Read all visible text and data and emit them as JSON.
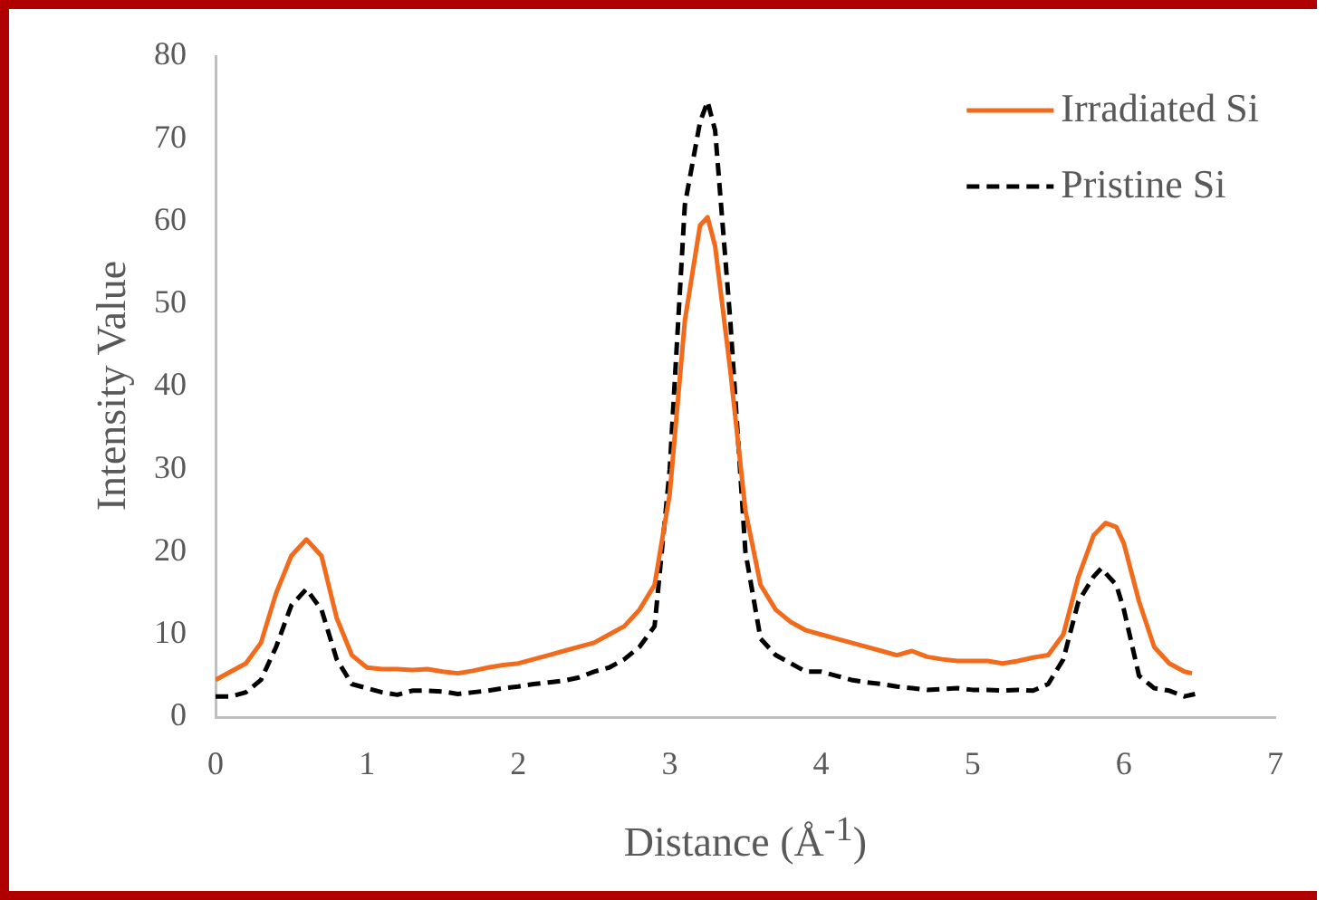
{
  "chart_data": {
    "type": "line",
    "xlabel": "Distance (Å$^{-1}$)",
    "ylabel": "Intensity Value",
    "xlim": [
      0,
      7
    ],
    "xticks": [
      0,
      1,
      2,
      3,
      4,
      5,
      6,
      7
    ],
    "ylim": [
      0,
      80
    ],
    "yticks": [
      0,
      10,
      20,
      30,
      40,
      50,
      60,
      70,
      80
    ],
    "grid": false,
    "legend": "top right",
    "marker": "none",
    "series": [
      {
        "name": "Irradiated Si",
        "color": "#f26b1d",
        "line_style": "solid",
        "x": [
          0,
          0.1,
          0.2,
          0.3,
          0.4,
          0.5,
          0.6,
          0.7,
          0.8,
          0.9,
          1.0,
          1.1,
          1.2,
          1.3,
          1.4,
          1.5,
          1.6,
          1.7,
          1.8,
          1.9,
          2.0,
          2.1,
          2.2,
          2.3,
          2.4,
          2.5,
          2.6,
          2.7,
          2.8,
          2.9,
          3.0,
          3.1,
          3.2,
          3.25,
          3.3,
          3.4,
          3.5,
          3.6,
          3.7,
          3.8,
          3.9,
          4.0,
          4.1,
          4.2,
          4.3,
          4.4,
          4.5,
          4.6,
          4.7,
          4.8,
          4.9,
          5.0,
          5.1,
          5.2,
          5.3,
          5.4,
          5.5,
          5.6,
          5.7,
          5.8,
          5.88,
          5.95,
          6.0,
          6.1,
          6.2,
          6.3,
          6.4,
          6.45
        ],
        "values": [
          4.5,
          5.5,
          6.5,
          9,
          15,
          19.5,
          21.5,
          19.5,
          12,
          7.5,
          6,
          5.8,
          5.8,
          5.7,
          5.8,
          5.5,
          5.3,
          5.6,
          6,
          6.3,
          6.5,
          7,
          7.5,
          8,
          8.5,
          9,
          10,
          11,
          13,
          16,
          27,
          48,
          59.5,
          60.5,
          57,
          42,
          25,
          16,
          13,
          11.5,
          10.5,
          10,
          9.5,
          9,
          8.5,
          8,
          7.5,
          8,
          7.3,
          7,
          6.8,
          6.8,
          6.8,
          6.5,
          6.8,
          7.2,
          7.5,
          10,
          17,
          22,
          23.5,
          23,
          21,
          14,
          8.5,
          6.5,
          5.5,
          5.3
        ]
      },
      {
        "name": "Pristine Si",
        "color": "#000000",
        "line_style": "dashed",
        "x": [
          0,
          0.1,
          0.2,
          0.3,
          0.4,
          0.5,
          0.6,
          0.7,
          0.8,
          0.9,
          1.0,
          1.1,
          1.2,
          1.3,
          1.4,
          1.5,
          1.6,
          1.7,
          1.8,
          1.9,
          2.0,
          2.1,
          2.2,
          2.3,
          2.4,
          2.5,
          2.6,
          2.7,
          2.8,
          2.9,
          3.0,
          3.1,
          3.2,
          3.25,
          3.3,
          3.4,
          3.5,
          3.6,
          3.7,
          3.8,
          3.9,
          4.0,
          4.1,
          4.2,
          4.3,
          4.4,
          4.5,
          4.6,
          4.7,
          4.8,
          4.9,
          5.0,
          5.1,
          5.2,
          5.3,
          5.4,
          5.5,
          5.6,
          5.7,
          5.8,
          5.85,
          5.95,
          6.0,
          6.1,
          6.2,
          6.3,
          6.4,
          6.47
        ],
        "values": [
          2.5,
          2.5,
          3,
          4.5,
          8.5,
          13.5,
          15.5,
          13,
          7,
          4,
          3.5,
          3,
          2.7,
          3.2,
          3.2,
          3.1,
          2.8,
          3,
          3.2,
          3.5,
          3.7,
          4,
          4.2,
          4.4,
          4.8,
          5.5,
          6,
          7,
          8.5,
          11,
          30,
          62,
          72,
          74.5,
          71,
          48,
          20,
          9.5,
          7.5,
          6.5,
          5.5,
          5.5,
          5,
          4.5,
          4.2,
          4,
          3.7,
          3.5,
          3.3,
          3.4,
          3.5,
          3.3,
          3.3,
          3.2,
          3.3,
          3.2,
          4,
          7,
          14,
          17,
          18,
          16,
          13,
          5,
          3.5,
          3.2,
          2.5,
          2.8
        ]
      }
    ]
  }
}
